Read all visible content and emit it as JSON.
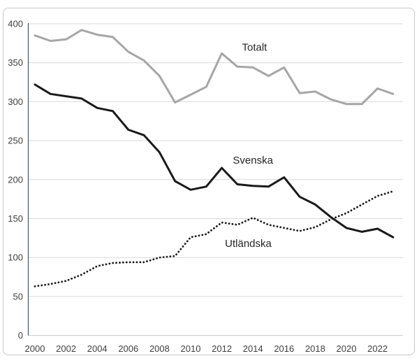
{
  "chart_data": {
    "type": "line",
    "title": "",
    "xlabel": "",
    "ylabel": "",
    "x": [
      2000,
      2001,
      2002,
      2003,
      2004,
      2005,
      2006,
      2007,
      2008,
      2009,
      2010,
      2011,
      2012,
      2013,
      2014,
      2015,
      2016,
      2017,
      2018,
      2019,
      2020,
      2021,
      2022,
      2023
    ],
    "series": [
      {
        "name": "Totalt",
        "style": "solid",
        "color": "#a6a6a6",
        "width": 3,
        "values": [
          385,
          378,
          380,
          392,
          386,
          383,
          364,
          353,
          333,
          299,
          309,
          319,
          362,
          345,
          344,
          333,
          344,
          311,
          313,
          303,
          297,
          297,
          317,
          310
        ]
      },
      {
        "name": "Svenska",
        "style": "solid",
        "color": "#1a1a1a",
        "width": 3,
        "values": [
          322,
          310,
          307,
          304,
          292,
          288,
          264,
          257,
          235,
          198,
          187,
          191,
          215,
          194,
          192,
          191,
          203,
          178,
          168,
          152,
          138,
          133,
          137,
          126
        ]
      },
      {
        "name": "Utländska",
        "style": "dotted",
        "color": "#1a1a1a",
        "width": 2.8,
        "values": [
          63,
          66,
          70,
          78,
          89,
          93,
          94,
          94,
          100,
          102,
          126,
          130,
          145,
          142,
          151,
          142,
          138,
          134,
          139,
          149,
          157,
          168,
          179,
          185
        ]
      }
    ],
    "annotations": [
      {
        "text": "Totalt",
        "x": 2014.1,
        "y": 370
      },
      {
        "text": "Svenska",
        "x": 2014.0,
        "y": 225
      },
      {
        "text": "Utländska",
        "x": 2013.7,
        "y": 118
      }
    ],
    "ylim": [
      0,
      400
    ],
    "ytick_step": 50,
    "yticks": [
      0,
      50,
      100,
      150,
      200,
      250,
      300,
      350,
      400
    ],
    "xticks": [
      2000,
      2002,
      2004,
      2006,
      2008,
      2010,
      2012,
      2014,
      2016,
      2018,
      2020,
      2022
    ],
    "grid": true,
    "legend_position": "inline-labels"
  },
  "style": {
    "gridline_color": "#d9d9d9",
    "x_axis_color": "#c2cbd8",
    "y_axis_color": "#44546A",
    "tick_label_color": "#404040",
    "annotation_color": "#262626",
    "frame_color": "#c9c9c9",
    "background": "#ffffff"
  }
}
